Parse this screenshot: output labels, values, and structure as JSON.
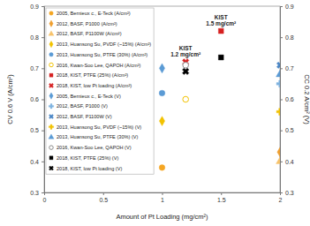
{
  "chart_data": {
    "type": "scatter",
    "x_label": "Amount of Pt Loading (mg/cm²)",
    "y_label": "CV 0.6 V (A/cm²)",
    "y2_label": "CC 0.2 A/cm² (V)",
    "xlim": [
      0,
      2
    ],
    "xticks": [
      0,
      0.5,
      1,
      1.5,
      2
    ],
    "ylim": [
      0.3,
      0.9
    ],
    "yticks": [
      0.3,
      0.4,
      0.5,
      0.6,
      0.7,
      0.8,
      0.9
    ],
    "y2lim": [
      0.3,
      0.9
    ],
    "y2ticks": [
      0.3,
      0.4,
      0.5,
      0.6,
      0.7,
      0.8,
      0.9
    ],
    "grid": false,
    "legend": "upper left",
    "series": [
      {
        "name": "2005, Bernieux c., E-Teck (A/cm²)",
        "color": "#f5a623",
        "marker": "circle",
        "x": [
          1
        ],
        "values": [
          0.38
        ]
      },
      {
        "name": "2012, BASF, P1000 (A/cm²)",
        "color": "#f0a030",
        "marker": "diamond",
        "x": [
          2
        ],
        "values": [
          0.43
        ]
      },
      {
        "name": "2012, BASF, P1100W (A/cm²)",
        "color": "#f7c36b",
        "marker": "triangle",
        "x": [
          2
        ],
        "values": [
          0.4
        ]
      },
      {
        "name": "2013, Huansong Su, PVDF (~15%) (A/cm²)",
        "color": "#f2c200",
        "marker": "diamond",
        "x": [
          1
        ],
        "values": [
          0.53
        ]
      },
      {
        "name": "2013, Huansong Su, PTFE (30%) (A/cm²)",
        "color": "#5b9bd5",
        "marker": "circle",
        "x": [
          1
        ],
        "values": [
          0.62
        ]
      },
      {
        "name": "2016, Kwan-Soo Lee, QAPOH (A/cm²)",
        "color": "#f2c200",
        "marker": "circle-open",
        "x": [
          1.2
        ],
        "values": [
          0.6
        ]
      },
      {
        "name": "2018, KIST, PTFE (25%) (A/cm²)",
        "color": "#d62020",
        "marker": "square",
        "x": [
          1.5
        ],
        "values": [
          0.82
        ]
      },
      {
        "name": "2018, KIST, low Pt loading (A/cm²)",
        "color": "#d62020",
        "marker": "x",
        "x": [
          1.2
        ],
        "values": [
          0.72
        ]
      },
      {
        "name": "2005, Bernieux c., E-Teck (V)",
        "color": "#5b9bd5",
        "marker": "diamond",
        "axis": "y2",
        "x": [
          1
        ],
        "values": [
          0.7
        ]
      },
      {
        "name": "2012, BASF, P1000 (V)",
        "color": "#7fb3e0",
        "marker": "plus",
        "axis": "y2",
        "x": [
          2
        ],
        "values": [
          0.65
        ]
      },
      {
        "name": "2012, BASF, P1100W (V)",
        "color": "#4a86c5",
        "marker": "x",
        "axis": "y2",
        "x": [
          2
        ],
        "values": [
          0.71
        ]
      },
      {
        "name": "2013, Huansong Su, PVDF (~15%) (V)",
        "color": "#f2c200",
        "marker": "plus",
        "axis": "y2",
        "x": [
          2
        ],
        "values": [
          0.56
        ]
      },
      {
        "name": "2013, Huansong Su, PTFE (30%) (V)",
        "color": "#5b9bd5",
        "marker": "triangle",
        "axis": "y2",
        "x": [
          2
        ],
        "values": [
          0.68
        ]
      },
      {
        "name": "2016, Kwan-Soo Lee, QAPOH (V)",
        "color": "#8c8c8c",
        "marker": "circle-open",
        "axis": "y2",
        "x": [
          1.2
        ],
        "values": [
          0.71
        ]
      },
      {
        "name": "2018, KIST, PTFE (25%) (V)",
        "color": "#000000",
        "marker": "square",
        "axis": "y2",
        "x": [
          1.5
        ],
        "values": [
          0.735
        ]
      },
      {
        "name": "2018, KIST, low Pt loading (V)",
        "color": "#000000",
        "marker": "x",
        "axis": "y2",
        "x": [
          1.2
        ],
        "values": [
          0.69
        ]
      }
    ],
    "annotations": [
      {
        "text": [
          "KIST",
          "1.5 mg/cm²"
        ],
        "x": 1.5,
        "y": 0.82
      },
      {
        "text": [
          "KIST",
          "1.2 mg/cm²"
        ],
        "x": 1.2,
        "y": 0.72
      }
    ]
  }
}
